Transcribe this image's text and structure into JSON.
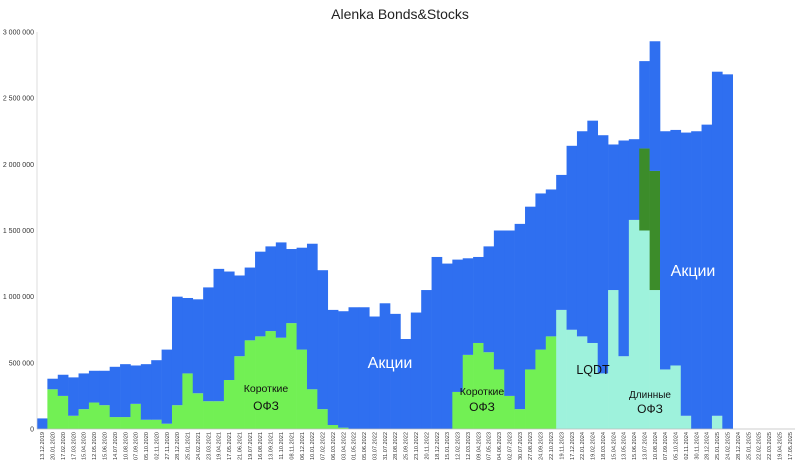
{
  "chart_data": {
    "type": "area",
    "title": "Alenka Bonds&Stocks",
    "xlabel": "",
    "ylabel": "",
    "ylim": [
      0,
      3000000
    ],
    "yticks": [
      0,
      500000,
      1000000,
      1500000,
      2000000,
      2500000,
      3000000
    ],
    "ytick_labels": [
      "0",
      "500 000",
      "1 000 000",
      "1 500 000",
      "2 000 000",
      "2 500 000",
      "3 000 000"
    ],
    "grid": false,
    "stacked": true,
    "colors": {
      "stocks": "#2f6ff0",
      "short_ofz": "#72f054",
      "lqdt": "#9ef2dc",
      "long_ofz": "#3c8c2a"
    },
    "x_dates": [
      "13.12.2019",
      "20.01.2020",
      "17.02.2020",
      "17.03.2020",
      "15.04.2020",
      "12.05.2020",
      "15.06.2020",
      "14.07.2020",
      "10.08.2020",
      "07.09.2020",
      "05.10.2020",
      "02.11.2020",
      "27.11.2020",
      "28.12.2020",
      "25.01.2021",
      "24.02.2021",
      "23.03.2021",
      "19.04.2021",
      "17.05.2021",
      "21.06.2021",
      "19.07.2021",
      "16.08.2021",
      "13.09.2021",
      "11.10.2021",
      "08.11.2021",
      "06.12.2021",
      "10.01.2022",
      "07.02.2022",
      "06.03.2022",
      "03.04.2022",
      "01.05.2022",
      "05.06.2022",
      "03.07.2022",
      "31.07.2022",
      "28.08.2022",
      "25.09.2022",
      "23.10.2022",
      "20.11.2022",
      "18.12.2022",
      "15.01.2023",
      "12.02.2023",
      "12.03.2023",
      "09.04.2023",
      "07.05.2023",
      "04.06.2023",
      "02.07.2023",
      "30.07.2023",
      "27.08.2023",
      "24.09.2023",
      "22.10.2023",
      "19.11.2023",
      "17.12.2023",
      "22.01.2024",
      "19.02.2024",
      "18.03.2024",
      "15.04.2024",
      "13.05.2024",
      "15.06.2024",
      "13.07.2024",
      "10.08.2024",
      "07.09.2024",
      "05.10.2024",
      "02.11.2024",
      "30.11.2024",
      "28.12.2024",
      "25.01.2025",
      "24.02.2025",
      "28.12.2024",
      "25.01.2025",
      "22.02.2025",
      "22.03.2025",
      "19.04.2025",
      "17.05.2025"
    ],
    "series": [
      {
        "name": "Короткие ОФЗ",
        "values": [
          0,
          300000,
          250000,
          100000,
          150000,
          200000,
          180000,
          90000,
          90000,
          190000,
          70000,
          70000,
          40000,
          180000,
          420000,
          270000,
          210000,
          210000,
          370000,
          550000,
          670000,
          700000,
          740000,
          690000,
          800000,
          600000,
          300000,
          150000,
          30000,
          10000,
          0,
          0,
          0,
          0,
          0,
          0,
          0,
          0,
          0,
          0,
          280000,
          560000,
          650000,
          580000,
          450000,
          250000,
          150000,
          450000,
          600000,
          700000,
          0,
          0,
          0,
          0,
          0,
          0,
          0,
          0,
          0,
          0,
          0,
          0,
          0,
          0,
          0,
          0,
          0,
          0,
          0,
          0,
          0,
          0,
          0
        ]
      },
      {
        "name": "LQDT",
        "values": [
          0,
          0,
          0,
          0,
          0,
          0,
          0,
          0,
          0,
          0,
          0,
          0,
          0,
          0,
          0,
          0,
          0,
          0,
          0,
          0,
          0,
          0,
          0,
          0,
          0,
          0,
          0,
          0,
          0,
          0,
          0,
          0,
          0,
          0,
          0,
          0,
          0,
          0,
          0,
          0,
          0,
          0,
          0,
          0,
          0,
          0,
          0,
          0,
          0,
          0,
          900000,
          750000,
          700000,
          650000,
          420000,
          1050000,
          550000,
          1580000,
          1500000,
          1050000,
          450000,
          480000,
          100000,
          0,
          0,
          100000,
          0,
          0,
          0,
          0,
          0,
          0,
          0
        ]
      },
      {
        "name": "Длинные ОФЗ",
        "values": [
          0,
          0,
          0,
          0,
          0,
          0,
          0,
          0,
          0,
          0,
          0,
          0,
          0,
          0,
          0,
          0,
          0,
          0,
          0,
          0,
          0,
          0,
          0,
          0,
          0,
          0,
          0,
          0,
          0,
          0,
          0,
          0,
          0,
          0,
          0,
          0,
          0,
          0,
          0,
          0,
          0,
          0,
          0,
          0,
          0,
          0,
          0,
          0,
          0,
          0,
          0,
          0,
          0,
          0,
          0,
          0,
          0,
          0,
          620000,
          900000,
          0,
          0,
          0,
          0,
          0,
          0,
          0,
          0,
          0,
          0,
          0,
          0,
          0
        ]
      },
      {
        "name": "Акции",
        "values": [
          80000,
          80000,
          160000,
          290000,
          270000,
          240000,
          260000,
          380000,
          400000,
          290000,
          420000,
          450000,
          560000,
          820000,
          570000,
          710000,
          860000,
          1000000,
          820000,
          610000,
          550000,
          640000,
          640000,
          720000,
          560000,
          770000,
          1100000,
          1050000,
          870000,
          880000,
          920000,
          920000,
          850000,
          950000,
          870000,
          680000,
          880000,
          1050000,
          1300000,
          1250000,
          1000000,
          730000,
          650000,
          800000,
          1050000,
          1250000,
          1400000,
          1230000,
          1180000,
          1110000,
          1020000,
          1390000,
          1550000,
          1680000,
          1800000,
          1100000,
          1630000,
          610000,
          660000,
          980000,
          1800000,
          1780000,
          2140000,
          2250000,
          2300000,
          2600000,
          2680000,
          0,
          0,
          0,
          0,
          0,
          0
        ]
      }
    ],
    "annotations": [
      {
        "text": "Короткие",
        "series": "Короткие ОФЗ"
      },
      {
        "text": "ОФЗ",
        "series": "Короткие ОФЗ"
      },
      {
        "text": "Акции",
        "series": "Акции"
      },
      {
        "text": "Короткие",
        "series": "Короткие ОФЗ"
      },
      {
        "text": "ОФЗ",
        "series": "Короткие ОФЗ"
      },
      {
        "text": "LQDT",
        "series": "LQDT"
      },
      {
        "text": "Длинные",
        "series": "Длинные ОФЗ"
      },
      {
        "text": "ОФЗ",
        "series": "Длинные ОФЗ"
      },
      {
        "text": "Акции",
        "series": "Акции"
      }
    ]
  }
}
